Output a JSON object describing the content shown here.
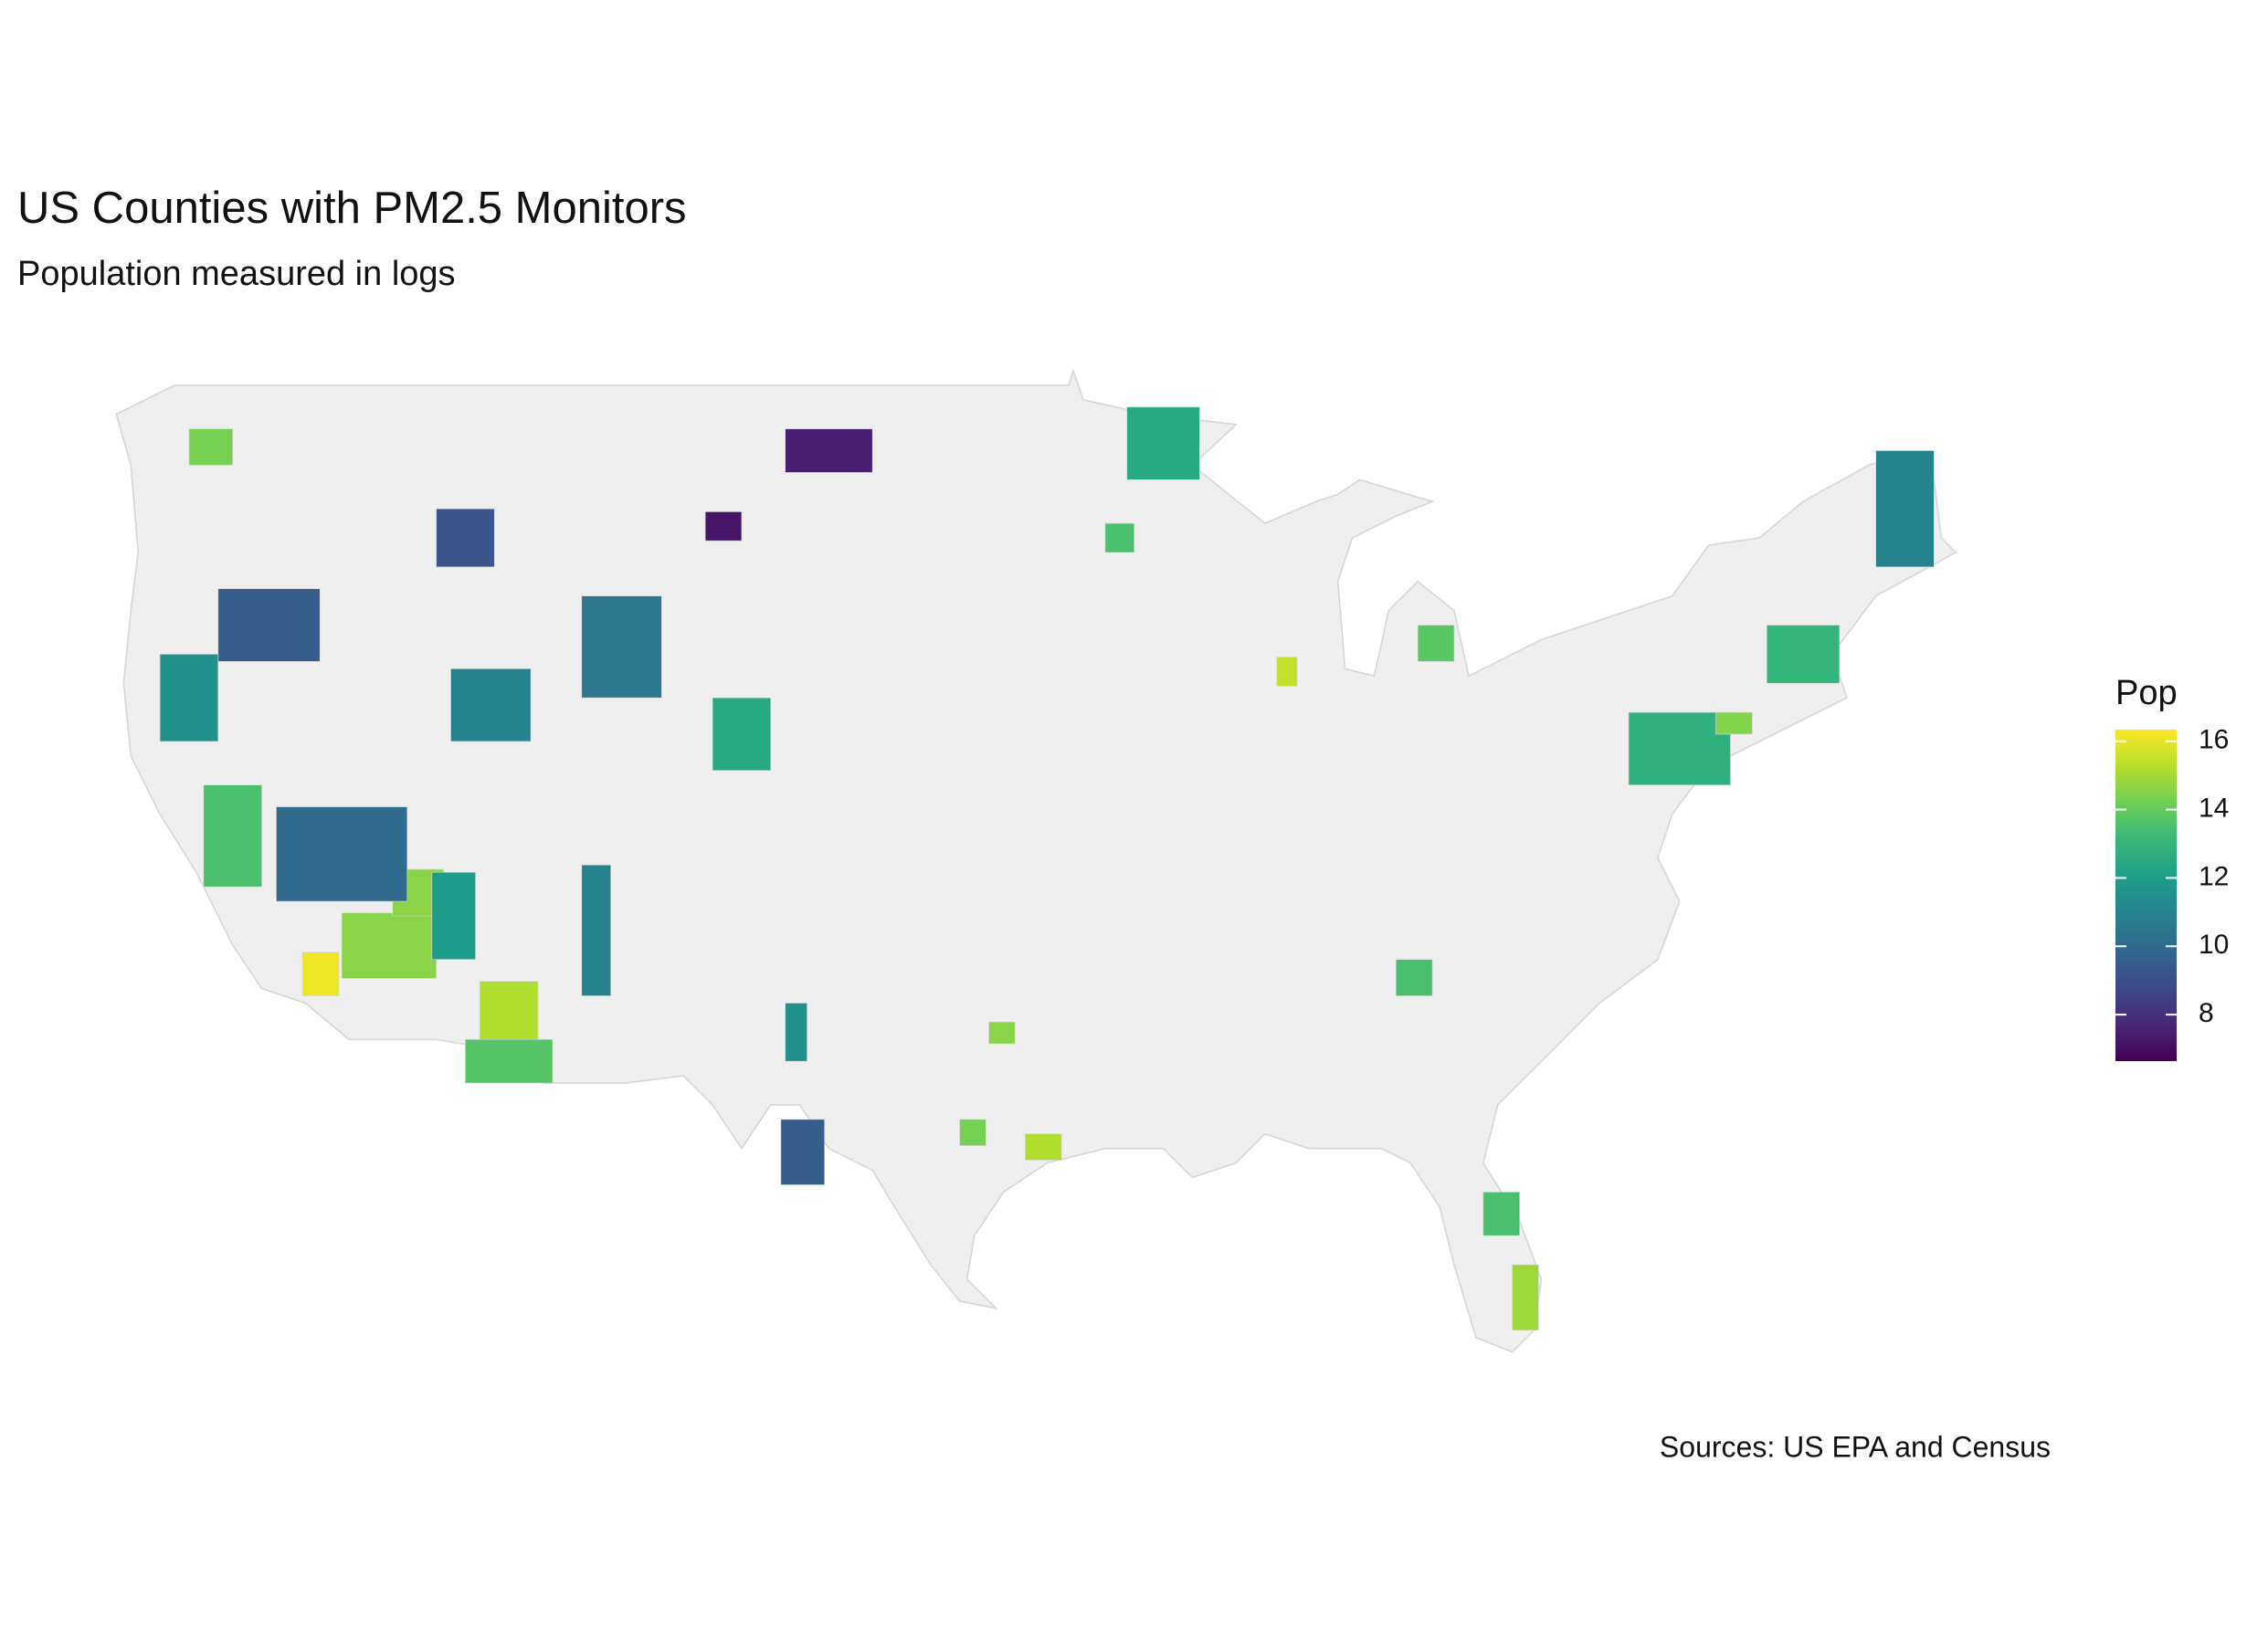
{
  "chart_data": {
    "type": "choropleth",
    "title": "US Counties with PM2.5 Monitors",
    "subtitle": "Population measured in logs",
    "caption": "Sources: US EPA and Census",
    "legend_title": "Pop",
    "values": [
      16.1,
      14.6,
      14.6,
      15.2,
      13.7,
      12.0,
      15.5,
      15.2,
      14.3,
      14.6,
      14.9,
      14.3,
      9.5,
      9.2,
      7.2,
      11.0,
      10.0,
      11.0,
      10.5,
      11.0,
      11.5,
      9.5,
      12.5,
      12.8,
      14.5,
      13.0,
      13.5,
      13.5,
      13.5,
      13.8,
      12.5,
      7.5,
      13.5,
      11.5
    ],
    "lim": [
      6.64,
      16.34
    ],
    "ticks": [
      8,
      10,
      12,
      14,
      16
    ],
    "colorscale": [
      "#440154",
      "#482878",
      "#3e4989",
      "#31688e",
      "#26828e",
      "#1f9e89",
      "#35b779",
      "#6ece58",
      "#b5de2b",
      "#fde725"
    ],
    "missing_color": "#efefef"
  }
}
